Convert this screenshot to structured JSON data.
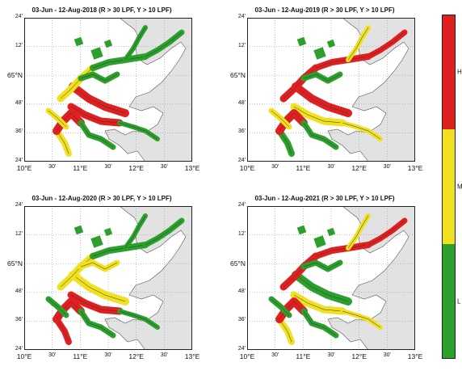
{
  "panels": [
    {
      "title": "03-Jun - 12-Aug-2018 (R > 30 LPF, Y > 10 LPF)",
      "variant": 0
    },
    {
      "title": "03-Jun - 12-Aug-2019 (R > 30 LPF, Y > 10 LPF)",
      "variant": 1
    },
    {
      "title": "03-Jun - 12-Aug-2020 (R > 30 LPF, Y > 10 LPF)",
      "variant": 2
    },
    {
      "title": "03-Jun - 12-Aug-2021 (R > 30 LPF, Y > 10 LPF)",
      "variant": 3
    }
  ],
  "lat_ticks": [
    {
      "label": "24'",
      "major": false
    },
    {
      "label": "12'",
      "major": false
    },
    {
      "label": "65°N",
      "major": true
    },
    {
      "label": "48'",
      "major": false
    },
    {
      "label": "36'",
      "major": false
    },
    {
      "label": "24'",
      "major": false
    }
  ],
  "lon_ticks": [
    {
      "label": "10°E",
      "major": true
    },
    {
      "label": "30'",
      "major": false
    },
    {
      "label": "11°E",
      "major": true
    },
    {
      "label": "30'",
      "major": false
    },
    {
      "label": "12°E",
      "major": true
    },
    {
      "label": "30'",
      "major": false
    },
    {
      "label": "13°E",
      "major": true
    }
  ],
  "colorbar": {
    "levels": [
      {
        "label": "H",
        "color": "#e02020"
      },
      {
        "label": "M",
        "color": "#f0e020"
      },
      {
        "label": "L",
        "color": "#2ca02c"
      }
    ]
  },
  "colors": {
    "sea": "#ffffff",
    "land": "#e2e2e2",
    "grid": "#9a9a9a",
    "high": "#e02020",
    "medium": "#f0e020",
    "low": "#2ca02c"
  }
}
